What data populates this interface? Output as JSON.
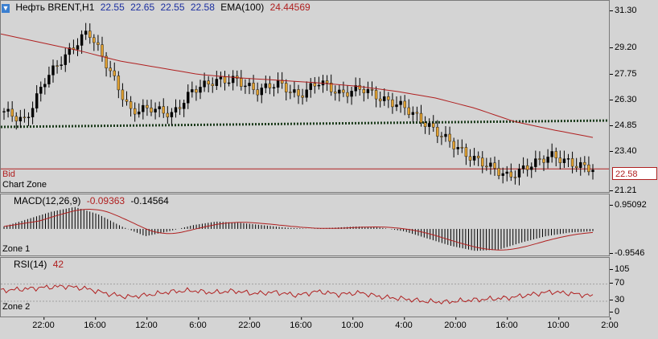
{
  "price_pane": {
    "header": {
      "symbol": "Нефть BRENT,H1",
      "open": "22.55",
      "high": "22.65",
      "low": "22.55",
      "close": "22.58",
      "ema_label": "EMA(100)",
      "ema_value": "24.44569"
    },
    "bid_label": "Bid",
    "zone_label": "Chart Zone",
    "bid_price": "22.58",
    "axis_ticks": [
      "31.30",
      "29.20",
      "27.75",
      "26.30",
      "24.85",
      "23.40",
      "21.21"
    ]
  },
  "macd_pane": {
    "header": {
      "label": "MACD(12,26,9)",
      "v1": "-0.09363",
      "v2": "-0.14564"
    },
    "zone_label": "Zone 1",
    "axis_ticks": [
      "0.95092",
      "-0.9546"
    ]
  },
  "rsi_pane": {
    "header": {
      "label": "RSI(14)",
      "value": "42"
    },
    "zone_label": "Zone 2",
    "axis_ticks": [
      "105",
      "70",
      "30",
      "0"
    ]
  },
  "time_axis": [
    "22:00",
    "16:00",
    "12:00",
    "6:00",
    "22:00",
    "16:00",
    "10:00",
    "4:00",
    "20:00",
    "16:00",
    "10:00",
    "2:00"
  ],
  "colors": {
    "background": "#d4d4d4",
    "candle_up": "#000000",
    "candle_down": "#e0a030",
    "ema": "#b02020",
    "trendline": "#1a3a1a"
  },
  "icons": {
    "symbol": "down-arrow-icon"
  },
  "chart_data": [
    {
      "type": "line",
      "title": "Нефть BRENT,H1",
      "ylim": [
        21.21,
        31.9
      ],
      "series": [
        {
          "name": "EMA(100)",
          "values": [
            30.6,
            30.1,
            29.6,
            29.0,
            28.6,
            28.2,
            28.0,
            27.85,
            27.7,
            27.5,
            27.2,
            26.8,
            26.2,
            25.4,
            24.9,
            24.45
          ]
        },
        {
          "name": "Close",
          "values": [
            26.0,
            25.4,
            28.0,
            29.4,
            30.8,
            28.5,
            26.0,
            26.2,
            25.8,
            27.3,
            27.8,
            27.9,
            27.2,
            27.7,
            26.9,
            27.8,
            27.0,
            27.4,
            26.7,
            26.3,
            25.3,
            24.4,
            23.4,
            22.8,
            22.1,
            22.8,
            23.4,
            22.9,
            22.58
          ]
        }
      ]
    },
    {
      "type": "bar",
      "title": "MACD(12,26,9)",
      "ylim": [
        -0.9546,
        0.95092
      ],
      "series": [
        {
          "name": "MACD",
          "values": [
            0.1,
            0.4,
            0.7,
            0.9,
            0.6,
            0.1,
            -0.3,
            -0.1,
            0.15,
            0.3,
            0.25,
            0.15,
            0.05,
            0.0,
            0.05,
            0.1,
            0.05,
            -0.1,
            -0.4,
            -0.7,
            -0.9,
            -0.85,
            -0.55,
            -0.3,
            -0.15,
            -0.09363
          ]
        }
      ]
    },
    {
      "type": "line",
      "title": "RSI(14)",
      "ylim": [
        0,
        105
      ],
      "series": [
        {
          "name": "RSI(14)",
          "values": [
            55,
            58,
            62,
            65,
            60,
            48,
            40,
            45,
            52,
            55,
            50,
            54,
            48,
            51,
            44,
            53,
            46,
            50,
            40,
            36,
            30,
            28,
            32,
            35,
            38,
            45,
            52,
            48,
            42
          ]
        }
      ]
    }
  ]
}
